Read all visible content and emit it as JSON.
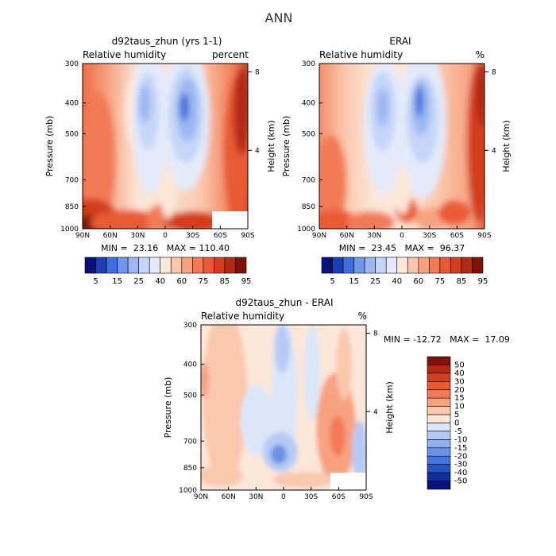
{
  "figure_title": "ANN",
  "chart_data": [
    {
      "type": "heatmap",
      "title": "d92taus_zhun (yrs 1-1)",
      "subtitle_left": "Relative humidity",
      "subtitle_right": "percent",
      "xlabel": "",
      "ylabel": "Pressure (mb)",
      "y2label": "Height (km)",
      "x_ticks": [
        "90N",
        "60N",
        "30N",
        "0",
        "30S",
        "60S",
        "90S"
      ],
      "y_ticks": [
        "300",
        "400",
        "500",
        "700",
        "850",
        "1000"
      ],
      "y2_ticks": [
        "8",
        "4"
      ],
      "stats": "MIN =  23.16   MAX = 110.40",
      "colorbar_labels": [
        "5",
        "15",
        "25",
        "40",
        "60",
        "75",
        "85",
        "95"
      ],
      "colorbar_colors": [
        "#08107f",
        "#1c3fb3",
        "#3f6fdc",
        "#7196ea",
        "#9db7f2",
        "#c4d5f8",
        "#e4ebfb",
        "#fde7d9",
        "#fbc8ad",
        "#f7a281",
        "#f27a56",
        "#e95a34",
        "#d23e1e",
        "#b02a14",
        "#7d1208"
      ]
    },
    {
      "type": "heatmap",
      "title": "ERAI",
      "subtitle_left": "Relative humidity",
      "subtitle_right": "%",
      "xlabel": "",
      "ylabel": "Pressure (mb)",
      "y2label": "Height (km)",
      "x_ticks": [
        "90N",
        "60N",
        "30N",
        "0",
        "30S",
        "60S",
        "90S"
      ],
      "y_ticks": [
        "300",
        "400",
        "500",
        "700",
        "850",
        "1000"
      ],
      "y2_ticks": [
        "8",
        "4"
      ],
      "stats": "MIN =  23.45   MAX =  96.37",
      "colorbar_labels": [
        "5",
        "15",
        "25",
        "40",
        "60",
        "75",
        "85",
        "95"
      ]
    },
    {
      "type": "heatmap",
      "title": "d92taus_zhun - ERAI",
      "subtitle_left": "Relative humidity",
      "subtitle_right": "%",
      "xlabel": "",
      "ylabel": "Pressure (mb)",
      "y2label": "Height (km)",
      "x_ticks": [
        "90N",
        "60N",
        "30N",
        "0",
        "30S",
        "60S",
        "90S"
      ],
      "y_ticks": [
        "300",
        "400",
        "500",
        "700",
        "850",
        "1000"
      ],
      "y2_ticks": [
        "8",
        "4"
      ],
      "stats": "MIN = -12.72   MAX =  17.09",
      "colorbar_labels": [
        "50",
        "40",
        "30",
        "20",
        "15",
        "10",
        "5",
        "0",
        "-5",
        "-10",
        "-15",
        "-20",
        "-30",
        "-40",
        "-50"
      ],
      "colorbar_colors": [
        "#7d1208",
        "#b02a14",
        "#d23e1e",
        "#e95a34",
        "#f27a56",
        "#f7a281",
        "#fbc8ad",
        "#fde7d9",
        "#dbe6fa",
        "#b5cbf5",
        "#8fb0ef",
        "#6a93e8",
        "#4676e0",
        "#2653c4",
        "#0f2c99",
        "#08107f"
      ]
    }
  ]
}
